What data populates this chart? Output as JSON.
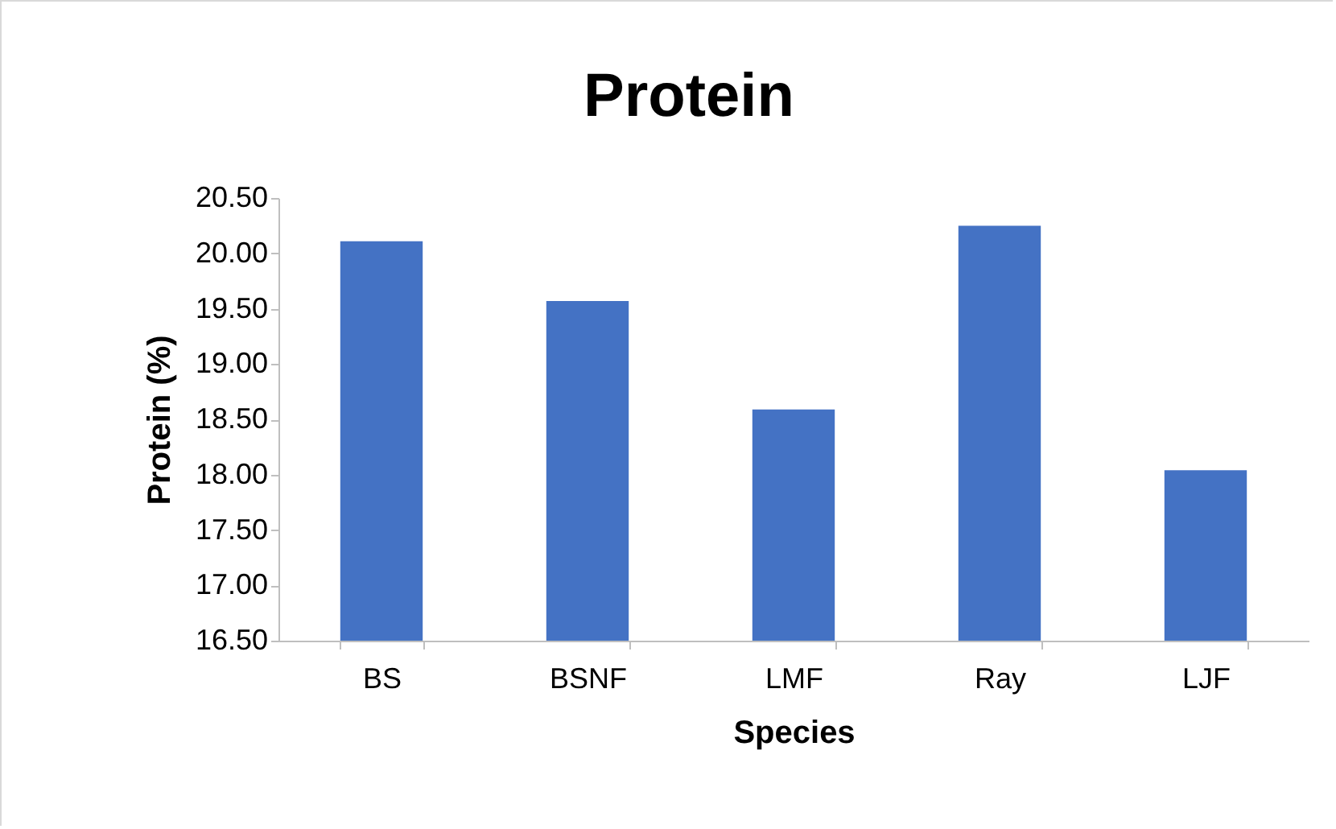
{
  "chart_data": {
    "type": "bar",
    "title": "Protein",
    "xlabel": "Species",
    "ylabel": "Protein (%)",
    "categories": [
      "BS",
      "BSNF",
      "LMF",
      "Ray",
      "LJF"
    ],
    "values": [
      20.11,
      19.57,
      18.59,
      20.25,
      18.04
    ],
    "color": "#4472c4",
    "ylim": [
      16.5,
      20.5
    ],
    "yticks": [
      {
        "value": 16.5,
        "label": "16.50"
      },
      {
        "value": 17,
        "label": "17.00"
      },
      {
        "value": 17.5,
        "label": "17.50"
      },
      {
        "value": 18,
        "label": "18.00"
      },
      {
        "value": 18.5,
        "label": "18.50"
      },
      {
        "value": 19,
        "label": "19.00"
      },
      {
        "value": 19.5,
        "label": "19.50"
      },
      {
        "value": 20,
        "label": "20.00"
      },
      {
        "value": 20.5,
        "label": "20.50"
      }
    ],
    "grid": false
  }
}
